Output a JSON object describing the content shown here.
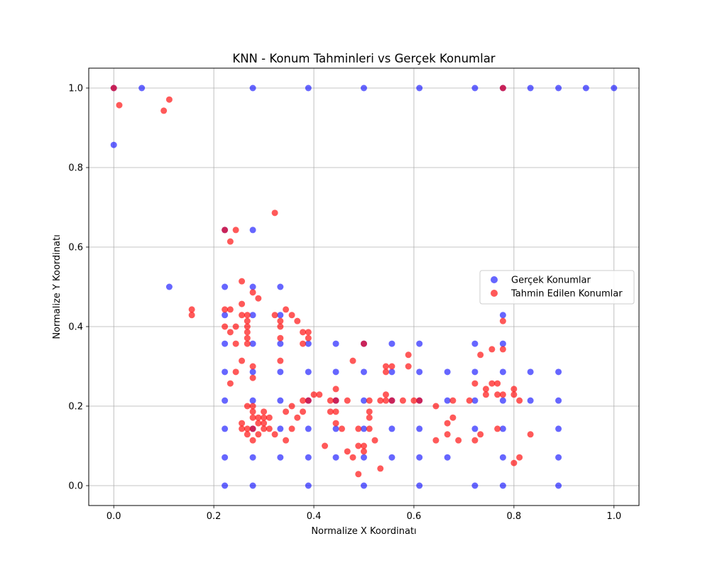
{
  "chart_data": {
    "type": "scatter",
    "title": "KNN - Konum Tahminleri vs Gerçek Konumlar",
    "xlabel": "Normalize X Koordinatı",
    "ylabel": "Normalize Y Koordinatı",
    "xlim": [
      -0.05,
      1.05
    ],
    "ylim": [
      -0.05,
      1.05
    ],
    "xticks": [
      0.0,
      0.2,
      0.4,
      0.6,
      0.8,
      1.0
    ],
    "yticks": [
      0.0,
      0.2,
      0.4,
      0.6,
      0.8,
      1.0
    ],
    "xtick_labels": [
      "0.0",
      "0.2",
      "0.4",
      "0.6",
      "0.8",
      "1.0"
    ],
    "ytick_labels": [
      "0.0",
      "0.2",
      "0.4",
      "0.6",
      "0.8",
      "1.0"
    ],
    "grid": true,
    "legend_position": "center-right",
    "series": [
      {
        "name": "Gerçek Konumlar",
        "color": "#0000ff",
        "alpha": 0.6,
        "points": [
          [
            0.0,
            1.0
          ],
          [
            0.056,
            1.0
          ],
          [
            0.278,
            1.0
          ],
          [
            0.389,
            1.0
          ],
          [
            0.5,
            1.0
          ],
          [
            0.611,
            1.0
          ],
          [
            0.722,
            1.0
          ],
          [
            0.778,
            1.0
          ],
          [
            0.833,
            1.0
          ],
          [
            0.889,
            1.0
          ],
          [
            0.944,
            1.0
          ],
          [
            1.0,
            1.0
          ],
          [
            0.0,
            0.857
          ],
          [
            0.111,
            0.5
          ],
          [
            0.222,
            0.643
          ],
          [
            0.278,
            0.643
          ],
          [
            0.222,
            0.5
          ],
          [
            0.278,
            0.5
          ],
          [
            0.333,
            0.5
          ],
          [
            0.222,
            0.429
          ],
          [
            0.278,
            0.429
          ],
          [
            0.333,
            0.429
          ],
          [
            0.778,
            0.429
          ],
          [
            0.222,
            0.357
          ],
          [
            0.278,
            0.357
          ],
          [
            0.333,
            0.357
          ],
          [
            0.389,
            0.357
          ],
          [
            0.444,
            0.357
          ],
          [
            0.5,
            0.357
          ],
          [
            0.556,
            0.357
          ],
          [
            0.611,
            0.357
          ],
          [
            0.722,
            0.357
          ],
          [
            0.778,
            0.357
          ],
          [
            0.222,
            0.286
          ],
          [
            0.278,
            0.286
          ],
          [
            0.333,
            0.286
          ],
          [
            0.389,
            0.286
          ],
          [
            0.444,
            0.286
          ],
          [
            0.5,
            0.286
          ],
          [
            0.556,
            0.286
          ],
          [
            0.611,
            0.286
          ],
          [
            0.667,
            0.286
          ],
          [
            0.722,
            0.286
          ],
          [
            0.778,
            0.286
          ],
          [
            0.833,
            0.286
          ],
          [
            0.889,
            0.286
          ],
          [
            0.222,
            0.214
          ],
          [
            0.278,
            0.214
          ],
          [
            0.333,
            0.214
          ],
          [
            0.389,
            0.214
          ],
          [
            0.444,
            0.214
          ],
          [
            0.5,
            0.214
          ],
          [
            0.556,
            0.214
          ],
          [
            0.611,
            0.214
          ],
          [
            0.667,
            0.214
          ],
          [
            0.722,
            0.214
          ],
          [
            0.778,
            0.214
          ],
          [
            0.833,
            0.214
          ],
          [
            0.889,
            0.214
          ],
          [
            0.222,
            0.143
          ],
          [
            0.278,
            0.143
          ],
          [
            0.333,
            0.143
          ],
          [
            0.389,
            0.143
          ],
          [
            0.444,
            0.143
          ],
          [
            0.5,
            0.143
          ],
          [
            0.556,
            0.143
          ],
          [
            0.611,
            0.143
          ],
          [
            0.722,
            0.143
          ],
          [
            0.778,
            0.143
          ],
          [
            0.889,
            0.143
          ],
          [
            0.222,
            0.071
          ],
          [
            0.278,
            0.071
          ],
          [
            0.333,
            0.071
          ],
          [
            0.389,
            0.071
          ],
          [
            0.444,
            0.071
          ],
          [
            0.5,
            0.071
          ],
          [
            0.556,
            0.071
          ],
          [
            0.611,
            0.071
          ],
          [
            0.667,
            0.071
          ],
          [
            0.778,
            0.071
          ],
          [
            0.889,
            0.071
          ],
          [
            0.222,
            0.0
          ],
          [
            0.278,
            0.0
          ],
          [
            0.389,
            0.0
          ],
          [
            0.5,
            0.0
          ],
          [
            0.611,
            0.0
          ],
          [
            0.722,
            0.0
          ],
          [
            0.778,
            0.0
          ],
          [
            0.889,
            0.0
          ]
        ]
      },
      {
        "name": "Tahmin Edilen Konumlar",
        "color": "#ff0000",
        "alpha": 0.65,
        "points": [
          [
            0.0,
            1.0
          ],
          [
            0.011,
            0.957
          ],
          [
            0.1,
            0.943
          ],
          [
            0.111,
            0.971
          ],
          [
            0.778,
            1.0
          ],
          [
            0.322,
            0.686
          ],
          [
            0.222,
            0.643
          ],
          [
            0.244,
            0.643
          ],
          [
            0.233,
            0.614
          ],
          [
            0.256,
            0.514
          ],
          [
            0.278,
            0.486
          ],
          [
            0.289,
            0.471
          ],
          [
            0.256,
            0.457
          ],
          [
            0.156,
            0.443
          ],
          [
            0.156,
            0.429
          ],
          [
            0.222,
            0.443
          ],
          [
            0.233,
            0.443
          ],
          [
            0.256,
            0.429
          ],
          [
            0.267,
            0.429
          ],
          [
            0.322,
            0.429
          ],
          [
            0.333,
            0.4
          ],
          [
            0.333,
            0.414
          ],
          [
            0.344,
            0.443
          ],
          [
            0.356,
            0.429
          ],
          [
            0.367,
            0.414
          ],
          [
            0.222,
            0.4
          ],
          [
            0.244,
            0.4
          ],
          [
            0.267,
            0.414
          ],
          [
            0.267,
            0.4
          ],
          [
            0.267,
            0.386
          ],
          [
            0.267,
            0.371
          ],
          [
            0.233,
            0.386
          ],
          [
            0.333,
            0.371
          ],
          [
            0.378,
            0.386
          ],
          [
            0.389,
            0.386
          ],
          [
            0.389,
            0.371
          ],
          [
            0.778,
            0.414
          ],
          [
            0.244,
            0.357
          ],
          [
            0.267,
            0.357
          ],
          [
            0.378,
            0.357
          ],
          [
            0.5,
            0.357
          ],
          [
            0.778,
            0.343
          ],
          [
            0.756,
            0.343
          ],
          [
            0.733,
            0.329
          ],
          [
            0.589,
            0.329
          ],
          [
            0.256,
            0.314
          ],
          [
            0.278,
            0.3
          ],
          [
            0.333,
            0.314
          ],
          [
            0.478,
            0.314
          ],
          [
            0.544,
            0.3
          ],
          [
            0.556,
            0.3
          ],
          [
            0.589,
            0.3
          ],
          [
            0.544,
            0.286
          ],
          [
            0.244,
            0.286
          ],
          [
            0.278,
            0.271
          ],
          [
            0.233,
            0.257
          ],
          [
            0.722,
            0.257
          ],
          [
            0.756,
            0.257
          ],
          [
            0.767,
            0.257
          ],
          [
            0.444,
            0.243
          ],
          [
            0.744,
            0.243
          ],
          [
            0.8,
            0.243
          ],
          [
            0.4,
            0.229
          ],
          [
            0.411,
            0.229
          ],
          [
            0.544,
            0.229
          ],
          [
            0.744,
            0.229
          ],
          [
            0.767,
            0.229
          ],
          [
            0.778,
            0.229
          ],
          [
            0.8,
            0.229
          ],
          [
            0.267,
            0.2
          ],
          [
            0.278,
            0.2
          ],
          [
            0.356,
            0.2
          ],
          [
            0.378,
            0.214
          ],
          [
            0.389,
            0.214
          ],
          [
            0.433,
            0.214
          ],
          [
            0.444,
            0.214
          ],
          [
            0.467,
            0.214
          ],
          [
            0.511,
            0.214
          ],
          [
            0.533,
            0.214
          ],
          [
            0.544,
            0.214
          ],
          [
            0.556,
            0.214
          ],
          [
            0.578,
            0.214
          ],
          [
            0.6,
            0.214
          ],
          [
            0.611,
            0.214
          ],
          [
            0.678,
            0.214
          ],
          [
            0.711,
            0.214
          ],
          [
            0.811,
            0.214
          ],
          [
            0.644,
            0.2
          ],
          [
            0.278,
            0.186
          ],
          [
            0.3,
            0.186
          ],
          [
            0.344,
            0.186
          ],
          [
            0.378,
            0.186
          ],
          [
            0.433,
            0.186
          ],
          [
            0.444,
            0.186
          ],
          [
            0.511,
            0.186
          ],
          [
            0.278,
            0.171
          ],
          [
            0.289,
            0.171
          ],
          [
            0.3,
            0.171
          ],
          [
            0.311,
            0.171
          ],
          [
            0.367,
            0.171
          ],
          [
            0.511,
            0.171
          ],
          [
            0.678,
            0.171
          ],
          [
            0.256,
            0.157
          ],
          [
            0.289,
            0.157
          ],
          [
            0.3,
            0.157
          ],
          [
            0.444,
            0.157
          ],
          [
            0.667,
            0.157
          ],
          [
            0.256,
            0.143
          ],
          [
            0.267,
            0.143
          ],
          [
            0.278,
            0.143
          ],
          [
            0.3,
            0.143
          ],
          [
            0.311,
            0.143
          ],
          [
            0.356,
            0.143
          ],
          [
            0.456,
            0.143
          ],
          [
            0.489,
            0.143
          ],
          [
            0.511,
            0.143
          ],
          [
            0.767,
            0.143
          ],
          [
            0.267,
            0.129
          ],
          [
            0.289,
            0.129
          ],
          [
            0.322,
            0.129
          ],
          [
            0.733,
            0.129
          ],
          [
            0.667,
            0.129
          ],
          [
            0.833,
            0.129
          ],
          [
            0.278,
            0.114
          ],
          [
            0.344,
            0.114
          ],
          [
            0.522,
            0.114
          ],
          [
            0.644,
            0.114
          ],
          [
            0.689,
            0.114
          ],
          [
            0.722,
            0.114
          ],
          [
            0.422,
            0.1
          ],
          [
            0.489,
            0.1
          ],
          [
            0.5,
            0.1
          ],
          [
            0.467,
            0.086
          ],
          [
            0.5,
            0.086
          ],
          [
            0.478,
            0.071
          ],
          [
            0.811,
            0.071
          ],
          [
            0.8,
            0.057
          ],
          [
            0.533,
            0.043
          ],
          [
            0.489,
            0.029
          ]
        ]
      }
    ]
  }
}
